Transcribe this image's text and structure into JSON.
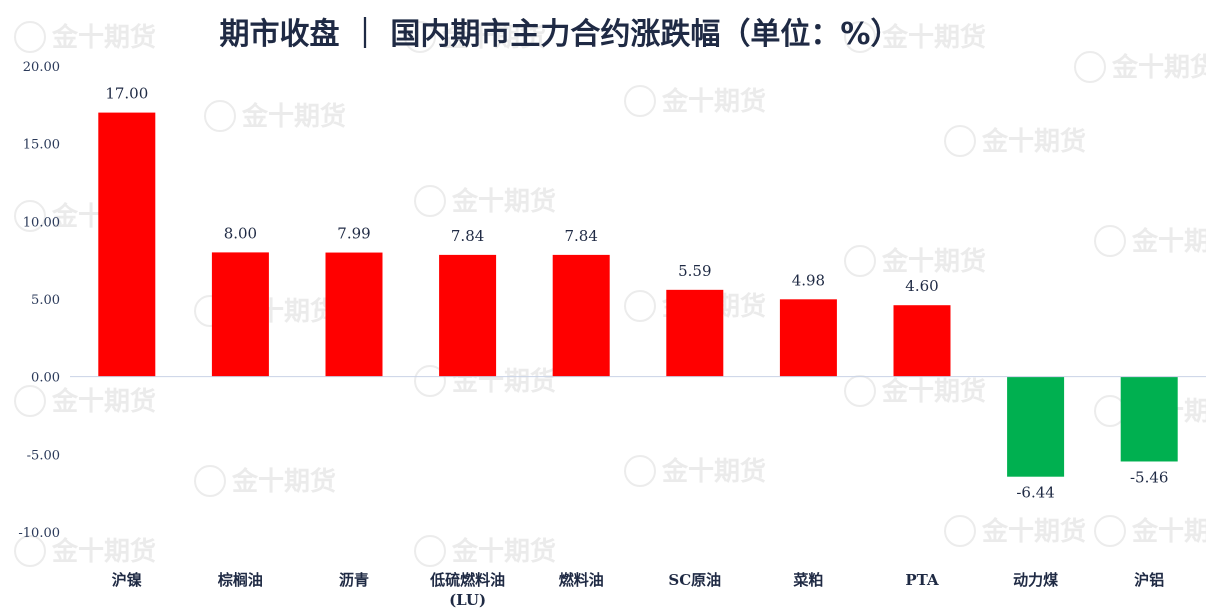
{
  "chart_data": {
    "type": "bar",
    "title": "期市收盘 ｜ 国内期市主力合约涨跌幅（单位：%）",
    "categories": [
      "沪镍",
      "棕榈油",
      "沥青",
      "低硫燃料油\n(LU)",
      "燃料油",
      "SC原油",
      "菜粕",
      "PTA",
      "动力煤",
      "沪铝"
    ],
    "values": [
      17.0,
      8.0,
      7.99,
      7.84,
      7.84,
      5.59,
      4.98,
      4.6,
      -6.44,
      -5.46
    ],
    "value_labels": [
      "17.00",
      "8.00",
      "7.99",
      "7.84",
      "7.84",
      "5.59",
      "4.98",
      "4.60",
      "-6.44",
      "-5.46"
    ],
    "ylim": [
      -10,
      20
    ],
    "yticks": [
      20,
      15,
      10,
      5,
      0,
      -5,
      -10
    ],
    "ytick_labels": [
      "20.00",
      "15.00",
      "10.00",
      "5.00",
      "0.00",
      "-5.00",
      "-10.00"
    ],
    "xlabel": "",
    "ylabel": "",
    "grid": false,
    "colors": {
      "positive": "#ff0000",
      "negative": "#00b050",
      "axis": "#c9d3e6",
      "text": "#1f2a44"
    },
    "watermark": "金十期货"
  }
}
